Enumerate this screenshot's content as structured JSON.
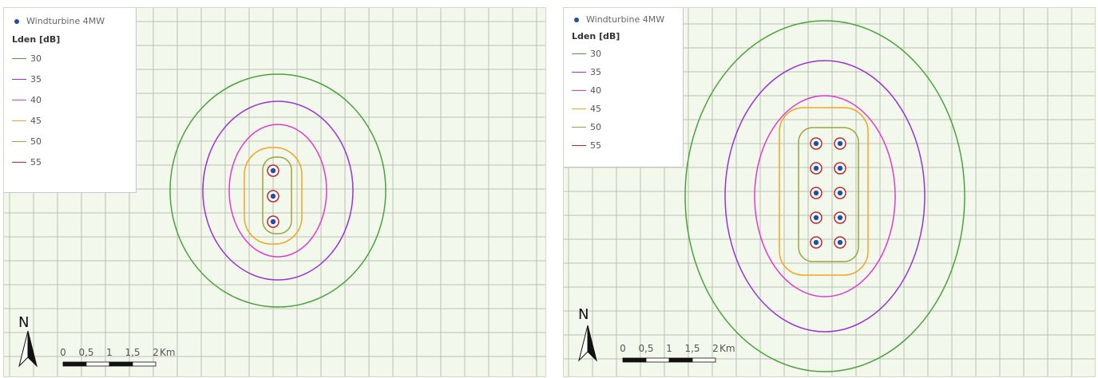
{
  "legend": {
    "turbine_label": "Windturbine 4MW",
    "title": "Lden [dB]",
    "levels": [
      {
        "label": "30",
        "color": "#4aa33a"
      },
      {
        "label": "35",
        "color": "#9b30d9"
      },
      {
        "label": "40",
        "color": "#e23ad0"
      },
      {
        "label": "45",
        "color": "#f2a51c"
      },
      {
        "label": "50",
        "color": "#9aa63a"
      },
      {
        "label": "55",
        "color": "#c0282a"
      }
    ]
  },
  "north_label": "N",
  "scale_bar": {
    "ticks": [
      "0",
      "0,5",
      "1",
      "1,5",
      "2"
    ],
    "unit": "Km"
  },
  "colors": {
    "background": "#f3f8ec",
    "grid": "#b8c2b0",
    "turbine": "#1f4fa8"
  },
  "maps": [
    {
      "name": "three-turbine-layout",
      "turbine_count": 3
    },
    {
      "name": "ten-turbine-layout",
      "turbine_count": 10
    }
  ]
}
